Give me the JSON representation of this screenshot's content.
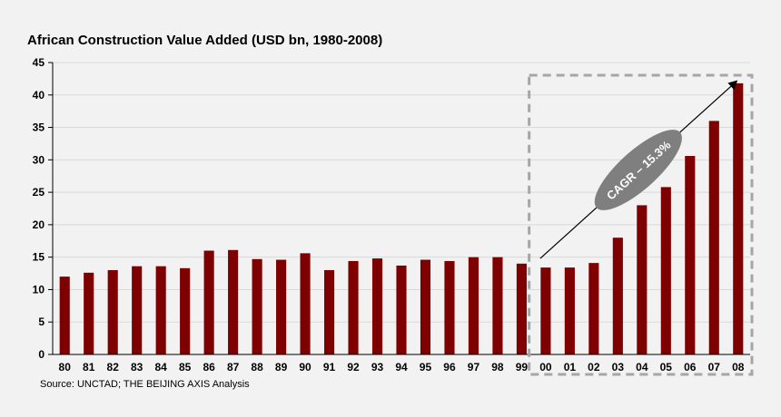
{
  "chart_data": {
    "type": "bar",
    "title": "African Construction Value Added (USD bn, 1980-2008)",
    "source": "Source: UNCTAD;  THE BEIJING AXIS Analysis",
    "categories": [
      "80",
      "81",
      "82",
      "83",
      "84",
      "85",
      "86",
      "87",
      "88",
      "89",
      "90",
      "91",
      "92",
      "93",
      "94",
      "95",
      "96",
      "97",
      "98",
      "99",
      "00",
      "01",
      "02",
      "03",
      "04",
      "05",
      "06",
      "07",
      "08"
    ],
    "values": [
      12.0,
      12.6,
      13.0,
      13.6,
      13.6,
      13.3,
      16.0,
      16.1,
      14.7,
      14.6,
      15.6,
      13.0,
      14.4,
      14.8,
      13.7,
      14.6,
      14.4,
      15.0,
      15.0,
      14.0,
      13.4,
      13.4,
      14.1,
      18.0,
      23.0,
      25.8,
      30.6,
      36.0,
      41.8
    ],
    "ylim": [
      0,
      45
    ],
    "yticks": [
      0,
      5,
      10,
      15,
      20,
      25,
      30,
      35,
      40,
      45
    ],
    "grid": true,
    "bar_color": "#7f0000",
    "annotation": {
      "label": "CAGR – 15.3%",
      "highlight_from": "00",
      "highlight_to": "08"
    }
  }
}
